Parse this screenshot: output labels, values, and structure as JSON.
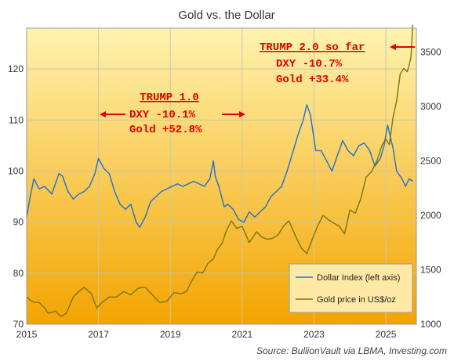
{
  "chart_data": {
    "type": "line",
    "title": "Gold vs. the Dollar",
    "source": "Source: BullionVault via LBMA, Investing.com",
    "x_ticks": [
      "2015",
      "2017",
      "2019",
      "2021",
      "2023",
      "2025"
    ],
    "xlim": [
      2015.0,
      2025.85
    ],
    "y_left": {
      "ticks": [
        70,
        80,
        90,
        100,
        110,
        120
      ],
      "ylim": [
        70,
        128
      ]
    },
    "y_right": {
      "ticks": [
        1000,
        1500,
        2000,
        2500,
        3000,
        3500
      ],
      "ylim": [
        1000,
        3720
      ]
    },
    "grid": true,
    "legend_position": "bottom-right",
    "colors": {
      "dollar": "#1f6fd0",
      "gold": "#7d7411",
      "annotation": "#e00000",
      "grid": "#c8c8ab",
      "bg_top": "#fff3b0",
      "bg_bottom": "#f3a400"
    },
    "annotations": {
      "trump1": {
        "title": "TRUMP 1.0",
        "dxy": "DXY  -10.1%",
        "gold": "Gold +52.8%"
      },
      "trump2": {
        "title": "TRUMP 2.0 so far",
        "dxy": "DXY  -10.7%",
        "gold": "Gold +33.4%"
      }
    },
    "series": [
      {
        "name": "Dollar Index (left axis)",
        "axis": "left",
        "x": [
          2015.0,
          2015.1,
          2015.2,
          2015.35,
          2015.5,
          2015.7,
          2015.9,
          2016.0,
          2016.15,
          2016.3,
          2016.45,
          2016.6,
          2016.75,
          2016.9,
          2017.0,
          2017.15,
          2017.3,
          2017.45,
          2017.6,
          2017.75,
          2017.9,
          2018.05,
          2018.15,
          2018.3,
          2018.45,
          2018.6,
          2018.75,
          2018.9,
          2019.05,
          2019.2,
          2019.35,
          2019.5,
          2019.65,
          2019.8,
          2019.95,
          2020.1,
          2020.2,
          2020.25,
          2020.35,
          2020.5,
          2020.6,
          2020.75,
          2020.9,
          2021.05,
          2021.2,
          2021.35,
          2021.5,
          2021.65,
          2021.8,
          2021.95,
          2022.1,
          2022.25,
          2022.4,
          2022.55,
          2022.7,
          2022.8,
          2022.9,
          2023.05,
          2023.2,
          2023.35,
          2023.5,
          2023.65,
          2023.8,
          2023.95,
          2024.1,
          2024.25,
          2024.4,
          2024.55,
          2024.7,
          2024.85,
          2024.95,
          2025.05,
          2025.2,
          2025.3,
          2025.45,
          2025.55,
          2025.65,
          2025.75
        ],
        "values": [
          91,
          95,
          98.5,
          96.5,
          97,
          95.5,
          99.5,
          99,
          96,
          94.5,
          95.5,
          96,
          97,
          99.5,
          102.5,
          100.5,
          99.5,
          96,
          93.5,
          92.5,
          93.5,
          90,
          89,
          91,
          94,
          95,
          96,
          96.5,
          97,
          97.5,
          97,
          97.5,
          98,
          97.5,
          97,
          98.5,
          102,
          99,
          97,
          93,
          93.5,
          92.5,
          90.5,
          90,
          92,
          91,
          92,
          93,
          95,
          96,
          97,
          100,
          103.5,
          107,
          110,
          113,
          111,
          104,
          104,
          102,
          100,
          103,
          106,
          104,
          103,
          105,
          105.5,
          104,
          101,
          102.5,
          105,
          109,
          104.5,
          100,
          98.5,
          97,
          98.5,
          98
        ]
      },
      {
        "name": "Gold price in US$/oz",
        "axis": "right",
        "x": [
          2015.0,
          2015.1,
          2015.2,
          2015.35,
          2015.5,
          2015.6,
          2015.8,
          2015.95,
          2016.1,
          2016.3,
          2016.45,
          2016.6,
          2016.8,
          2016.95,
          2017.1,
          2017.3,
          2017.5,
          2017.7,
          2017.9,
          2018.1,
          2018.3,
          2018.5,
          2018.7,
          2018.9,
          2019.1,
          2019.3,
          2019.45,
          2019.6,
          2019.75,
          2019.9,
          2020.05,
          2020.2,
          2020.3,
          2020.45,
          2020.55,
          2020.7,
          2020.85,
          2021.0,
          2021.2,
          2021.4,
          2021.55,
          2021.7,
          2021.85,
          2022.0,
          2022.15,
          2022.3,
          2022.5,
          2022.65,
          2022.8,
          2022.95,
          2023.1,
          2023.25,
          2023.4,
          2023.55,
          2023.7,
          2023.85,
          2024.0,
          2024.15,
          2024.3,
          2024.45,
          2024.6,
          2024.75,
          2024.9,
          2025.0,
          2025.1,
          2025.2,
          2025.3,
          2025.4,
          2025.5,
          2025.6,
          2025.7,
          2025.75
        ],
        "values": [
          1250,
          1220,
          1200,
          1200,
          1150,
          1100,
          1120,
          1070,
          1100,
          1250,
          1300,
          1340,
          1280,
          1150,
          1200,
          1250,
          1250,
          1300,
          1270,
          1330,
          1340,
          1270,
          1200,
          1210,
          1290,
          1280,
          1300,
          1400,
          1480,
          1470,
          1560,
          1600,
          1680,
          1750,
          1850,
          1950,
          1880,
          1900,
          1750,
          1850,
          1800,
          1780,
          1790,
          1820,
          1900,
          1950,
          1800,
          1700,
          1650,
          1780,
          1900,
          2000,
          1960,
          1930,
          1900,
          1830,
          2050,
          2020,
          2150,
          2350,
          2400,
          2500,
          2650,
          2700,
          2650,
          2900,
          3050,
          3300,
          3350,
          3320,
          3450,
          3750
        ]
      }
    ]
  }
}
